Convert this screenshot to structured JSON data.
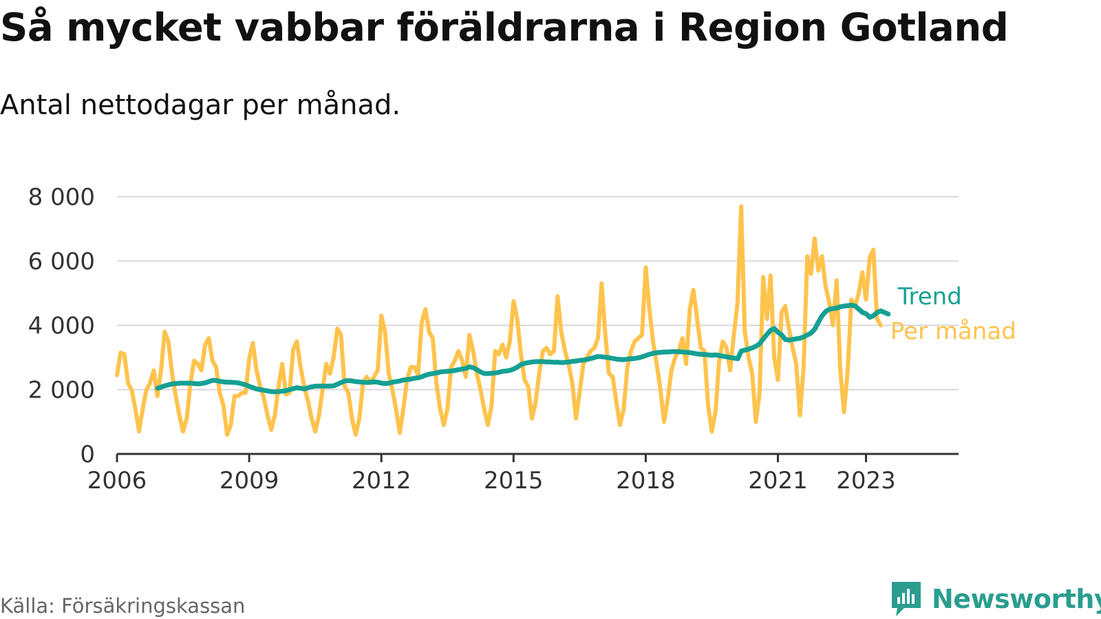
{
  "chart_data": {
    "type": "line",
    "title": "Så mycket vabbar föräldrarna i Region Gotland",
    "subtitle": "Antal nettodagar per månad.",
    "source": "Källa: Försäkringskassan",
    "brand": "Newsworthy",
    "xlabel": "",
    "ylabel": "",
    "ylim": [
      0,
      8000
    ],
    "xlim": [
      2006,
      2025.1
    ],
    "x_ticks": [
      {
        "value": 2006,
        "label": "2006"
      },
      {
        "value": 2009,
        "label": "2009"
      },
      {
        "value": 2012,
        "label": "2012"
      },
      {
        "value": 2015,
        "label": "2015"
      },
      {
        "value": 2018,
        "label": "2018"
      },
      {
        "value": 2021,
        "label": "2021"
      },
      {
        "value": 2023,
        "label": "2023"
      }
    ],
    "y_ticks": [
      {
        "value": 0,
        "label": "0"
      },
      {
        "value": 2000,
        "label": "2 000"
      },
      {
        "value": 4000,
        "label": "4 000"
      },
      {
        "value": 6000,
        "label": "6 000"
      },
      {
        "value": 8000,
        "label": "8 000"
      }
    ],
    "grid": true,
    "series": [
      {
        "name": "Per månad",
        "color": "#ffc34d",
        "x_start": 2006.0,
        "step": 0.083333,
        "values": [
          2450,
          3150,
          3100,
          2200,
          2000,
          1400,
          700,
          1400,
          2000,
          2200,
          2600,
          1800,
          2600,
          3800,
          3500,
          2500,
          1800,
          1200,
          700,
          1100,
          2200,
          2900,
          2800,
          2600,
          3400,
          3600,
          2900,
          2700,
          1900,
          1500,
          600,
          900,
          1800,
          1800,
          1900,
          1900,
          2950,
          3450,
          2600,
          2100,
          1750,
          1200,
          750,
          1200,
          2100,
          2800,
          1850,
          1900,
          3250,
          3500,
          2700,
          2100,
          1650,
          1100,
          700,
          1200,
          2000,
          2800,
          2500,
          3000,
          3900,
          3700,
          2100,
          1900,
          1100,
          600,
          1100,
          2200,
          2400,
          2200,
          2400,
          2600,
          4300,
          3800,
          2500,
          2000,
          1400,
          650,
          1400,
          2300,
          2700,
          2700,
          2450,
          4100,
          4500,
          3800,
          3600,
          2200,
          1400,
          900,
          1400,
          2700,
          2900,
          3200,
          2900,
          2400,
          3700,
          3200,
          2500,
          2000,
          1400,
          900,
          1500,
          3200,
          3100,
          3400,
          3000,
          3500,
          4750,
          4200,
          3100,
          2300,
          2100,
          1100,
          1600,
          2500,
          3200,
          3300,
          3100,
          3200,
          4900,
          3800,
          3200,
          2800,
          2200,
          1100,
          1900,
          2800,
          3000,
          3200,
          3300,
          3600,
          5300,
          3700,
          2500,
          2400,
          1600,
          900,
          1400,
          2700,
          3200,
          3500,
          3600,
          3700,
          5800,
          4500,
          3500,
          2800,
          2000,
          1000,
          1700,
          2600,
          3000,
          3200,
          3600,
          2800,
          4500,
          5100,
          4200,
          3300,
          3200,
          1500,
          700,
          1300,
          2900,
          3500,
          3300,
          2600,
          3700,
          4700,
          7700,
          3800,
          3000,
          2500,
          1000,
          1900,
          5500,
          4200,
          5550,
          3000,
          2300,
          4400,
          4600,
          3900,
          3300,
          2800,
          1200,
          2700,
          6150,
          5600,
          6700,
          5700,
          6150,
          5200,
          4700,
          4000,
          5400,
          2600,
          1300,
          2600,
          4800,
          4600,
          5000,
          5650,
          4800,
          6100,
          6350,
          4200,
          4000
        ]
      },
      {
        "name": "Trend",
        "color": "#15a093",
        "x_start": 2006.92,
        "step": 0.083333,
        "values": [
          2040,
          2080,
          2120,
          2150,
          2180,
          2190,
          2200,
          2200,
          2200,
          2200,
          2190,
          2180,
          2190,
          2210,
          2250,
          2290,
          2280,
          2260,
          2240,
          2230,
          2230,
          2220,
          2210,
          2180,
          2150,
          2100,
          2060,
          2020,
          2000,
          1980,
          1960,
          1940,
          1930,
          1940,
          1950,
          1970,
          2000,
          2030,
          2060,
          2040,
          2020,
          2060,
          2090,
          2110,
          2110,
          2110,
          2110,
          2110,
          2120,
          2170,
          2220,
          2270,
          2280,
          2270,
          2250,
          2240,
          2230,
          2220,
          2230,
          2240,
          2230,
          2200,
          2190,
          2200,
          2230,
          2250,
          2270,
          2300,
          2310,
          2330,
          2350,
          2370,
          2400,
          2450,
          2480,
          2500,
          2520,
          2550,
          2560,
          2570,
          2580,
          2600,
          2620,
          2640,
          2660,
          2710,
          2680,
          2620,
          2550,
          2500,
          2500,
          2510,
          2520,
          2540,
          2570,
          2580,
          2600,
          2640,
          2700,
          2780,
          2820,
          2840,
          2860,
          2870,
          2870,
          2870,
          2860,
          2860,
          2850,
          2850,
          2840,
          2850,
          2860,
          2880,
          2890,
          2910,
          2920,
          2940,
          2970,
          3000,
          3030,
          3020,
          3010,
          2990,
          2970,
          2950,
          2940,
          2930,
          2950,
          2960,
          2970,
          2990,
          3020,
          3060,
          3100,
          3130,
          3150,
          3160,
          3170,
          3170,
          3180,
          3180,
          3180,
          3170,
          3160,
          3150,
          3130,
          3110,
          3100,
          3090,
          3080,
          3070,
          3080,
          3060,
          3040,
          3020,
          3000,
          2980,
          2960,
          3200,
          3230,
          3260,
          3300,
          3350,
          3430,
          3580,
          3720,
          3850,
          3900,
          3780,
          3700,
          3560,
          3540,
          3560,
          3580,
          3600,
          3640,
          3700,
          3760,
          3880,
          4100,
          4300,
          4430,
          4500,
          4520,
          4540,
          4580,
          4600,
          4610,
          4630,
          4600,
          4500,
          4400,
          4360,
          4250,
          4300,
          4400,
          4450,
          4400,
          4350
        ]
      }
    ],
    "legend": [
      {
        "label": "Trend",
        "series": "Trend",
        "placement": "right"
      },
      {
        "label": "Per månad",
        "series": "Per månad",
        "placement": "right"
      }
    ]
  }
}
